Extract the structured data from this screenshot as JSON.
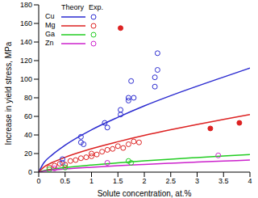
{
  "chart_data": {
    "type": "line_scatter",
    "x_label": "Solute concentration, at.%",
    "y_label": "Increase in yield stress, MPa",
    "xlim": [
      0,
      4
    ],
    "xticks": [
      0,
      0.5,
      1,
      1.5,
      2,
      2.5,
      3,
      3.5,
      4
    ],
    "ylim": [
      0,
      180
    ],
    "yticks": [
      0,
      20,
      40,
      60,
      80,
      100,
      120,
      140,
      160,
      180
    ],
    "legend": "upper left",
    "legend_titles": [
      "Theory",
      "Exp."
    ],
    "series": [
      {
        "name": "Cu",
        "color": "#2b2bd0",
        "theory": {
          "x": [
            0,
            0.1,
            0.25,
            0.5,
            1,
            1.5,
            2,
            2.5,
            3,
            3.5,
            4
          ],
          "values": [
            0,
            10.2,
            18.4,
            29,
            45.5,
            59,
            71.3,
            82.3,
            92.5,
            102.3,
            112
          ]
        },
        "exp": {
          "marker": "open_circle",
          "x": [
            0.45,
            0.45,
            0.8,
            0.8,
            0.85,
            1.25,
            1.3,
            1.55,
            1.55,
            1.7,
            1.7,
            1.75,
            1.8,
            2.2,
            2.2,
            2.25,
            2.25
          ],
          "values": [
            10,
            14,
            38,
            32,
            30,
            53,
            48,
            62,
            67,
            77,
            80,
            98,
            80,
            92,
            102,
            128,
            110
          ]
        }
      },
      {
        "name": "Mg",
        "color": "#dd2222",
        "theory": {
          "x": [
            0,
            0.1,
            0.25,
            0.5,
            1,
            1.5,
            2,
            2.5,
            3,
            3.5,
            4
          ],
          "values": [
            0,
            5.6,
            10.2,
            16,
            25.2,
            32.7,
            39.5,
            45.6,
            51.3,
            56.7,
            62
          ]
        },
        "exp": {
          "marker": "open_circle",
          "x": [
            0.2,
            0.3,
            0.4,
            0.5,
            0.6,
            0.7,
            0.8,
            0.9,
            1.0,
            1.0,
            1.1,
            1.2,
            1.3,
            1.4,
            1.5,
            1.6,
            1.7,
            1.8,
            1.9
          ],
          "values": [
            5,
            7,
            9,
            8,
            12,
            13,
            15,
            16,
            17,
            20,
            19,
            22,
            24,
            25,
            28,
            26,
            30,
            33,
            32
          ]
        },
        "exp_filled": {
          "marker": "filled_circle",
          "x": [
            1.55,
            3.25,
            3.8
          ],
          "values": [
            155,
            47,
            53
          ]
        }
      },
      {
        "name": "Ga",
        "color": "#22cc22",
        "theory": {
          "x": [
            0,
            0.1,
            0.25,
            0.5,
            1,
            1.5,
            2,
            2.5,
            3,
            3.5,
            4
          ],
          "values": [
            0,
            1.7,
            3.1,
            4.9,
            7.7,
            10,
            12.1,
            14,
            15.7,
            17.3,
            19
          ]
        },
        "exp": {
          "marker": "open_circle",
          "x": [
            0.2,
            0.5,
            1.7,
            1.75
          ],
          "values": [
            3,
            5,
            12,
            10
          ]
        }
      },
      {
        "name": "Zn",
        "color": "#cc22cc",
        "theory": {
          "x": [
            0,
            0.1,
            0.25,
            0.5,
            1,
            1.5,
            2,
            2.5,
            3,
            3.5,
            4
          ],
          "values": [
            0,
            1.2,
            2.1,
            3.4,
            5.3,
            6.9,
            8.3,
            9.6,
            10.8,
            11.9,
            13
          ]
        },
        "exp": {
          "marker": "open_circle",
          "x": [
            0.3,
            1.3,
            3.4
          ],
          "values": [
            4,
            10,
            18
          ]
        }
      }
    ]
  }
}
